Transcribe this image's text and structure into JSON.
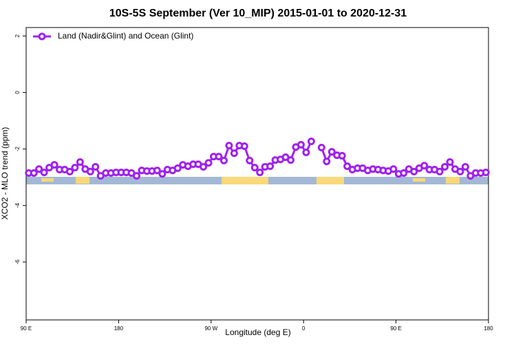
{
  "chart_data": {
    "type": "line",
    "title": "10S-5S September (Ver 10_MIP)   2015-01-01 to 2020-12-31",
    "x_label": "Longitude (deg E)",
    "y_label": "XCO2 - MLO trend (ppm)",
    "x": [
      92.5,
      97.5,
      102.5,
      107.5,
      112.5,
      117.5,
      122.5,
      127.5,
      132.5,
      137.5,
      142.5,
      147.5,
      152.5,
      157.5,
      162.5,
      167.5,
      172.5,
      177.5,
      182.5,
      187.5,
      192.5,
      197.5,
      202.5,
      207.5,
      212.5,
      217.5,
      222.5,
      227.5,
      232.5,
      237.5,
      242.5,
      247.5,
      252.5,
      257.5,
      262.5,
      267.5,
      272.5,
      277.5,
      282.5,
      287.5,
      292.5,
      297.5,
      302.5,
      307.5,
      312.5,
      317.5,
      322.5,
      327.5,
      332.5,
      337.5,
      342.5,
      347.5,
      352.5,
      357.5,
      362.5,
      367.5,
      372.5,
      377.5,
      382.5,
      387.5,
      392.5,
      397.5,
      402.5,
      407.5,
      412.5,
      417.5,
      422.5,
      427.5,
      432.5,
      437.5,
      442.5,
      447.5,
      452.5,
      457.5,
      462.5,
      467.5,
      472.5,
      477.5,
      482.5,
      487.5,
      492.5,
      497.5,
      502.5,
      507.5,
      512.5,
      517.5,
      522.5,
      527.5,
      532.5,
      537.5
    ],
    "series": [
      {
        "name": "Land (Nadir&Glint) and Ocean (Glint)",
        "color": "#a020f0",
        "values": [
          -2.85,
          -2.85,
          -2.71,
          -2.83,
          -2.66,
          -2.56,
          -2.73,
          -2.73,
          -2.8,
          -2.66,
          -2.46,
          -2.71,
          -2.8,
          -2.63,
          -2.95,
          -2.85,
          -2.85,
          -2.83,
          -2.83,
          -2.83,
          -2.85,
          -2.95,
          -2.76,
          -2.78,
          -2.78,
          -2.76,
          -2.88,
          -2.73,
          -2.76,
          -2.68,
          -2.56,
          -2.61,
          -2.54,
          -2.54,
          -2.63,
          -2.49,
          -2.27,
          -2.27,
          -2.41,
          -1.88,
          -2.15,
          -1.88,
          -1.9,
          -2.41,
          -2.66,
          -2.83,
          -2.63,
          -2.61,
          -2.39,
          -2.37,
          -2.29,
          -2.39,
          -1.93,
          -1.85,
          -2.12,
          -1.73,
          null,
          -1.95,
          -2.44,
          -2.1,
          -2.22,
          -2.24,
          -2.61,
          -2.73,
          -2.68,
          -2.68,
          -2.76,
          -2.71,
          -2.73,
          -2.76,
          -2.78,
          -2.71,
          -2.88,
          -2.85,
          -2.71,
          -2.8,
          -2.68,
          -2.59,
          -2.73,
          -2.73,
          -2.8,
          -2.63,
          -2.46,
          -2.71,
          -2.8,
          -2.63,
          -2.95,
          -2.85,
          -2.85,
          -2.83
        ]
      }
    ],
    "xlim": [
      90,
      540
    ],
    "xticks": [
      {
        "value": 90,
        "label": "90 E"
      },
      {
        "value": 180,
        "label": "180"
      },
      {
        "value": 270,
        "label": "90 W"
      },
      {
        "value": 360,
        "label": "0"
      },
      {
        "value": 450,
        "label": "90 E"
      },
      {
        "value": 540,
        "label": "180"
      }
    ],
    "ylim": [
      -8.05,
      2.3
    ],
    "yticks": [
      2,
      0,
      -2,
      -4,
      -6
    ],
    "grid": false,
    "legend": "top-left"
  }
}
